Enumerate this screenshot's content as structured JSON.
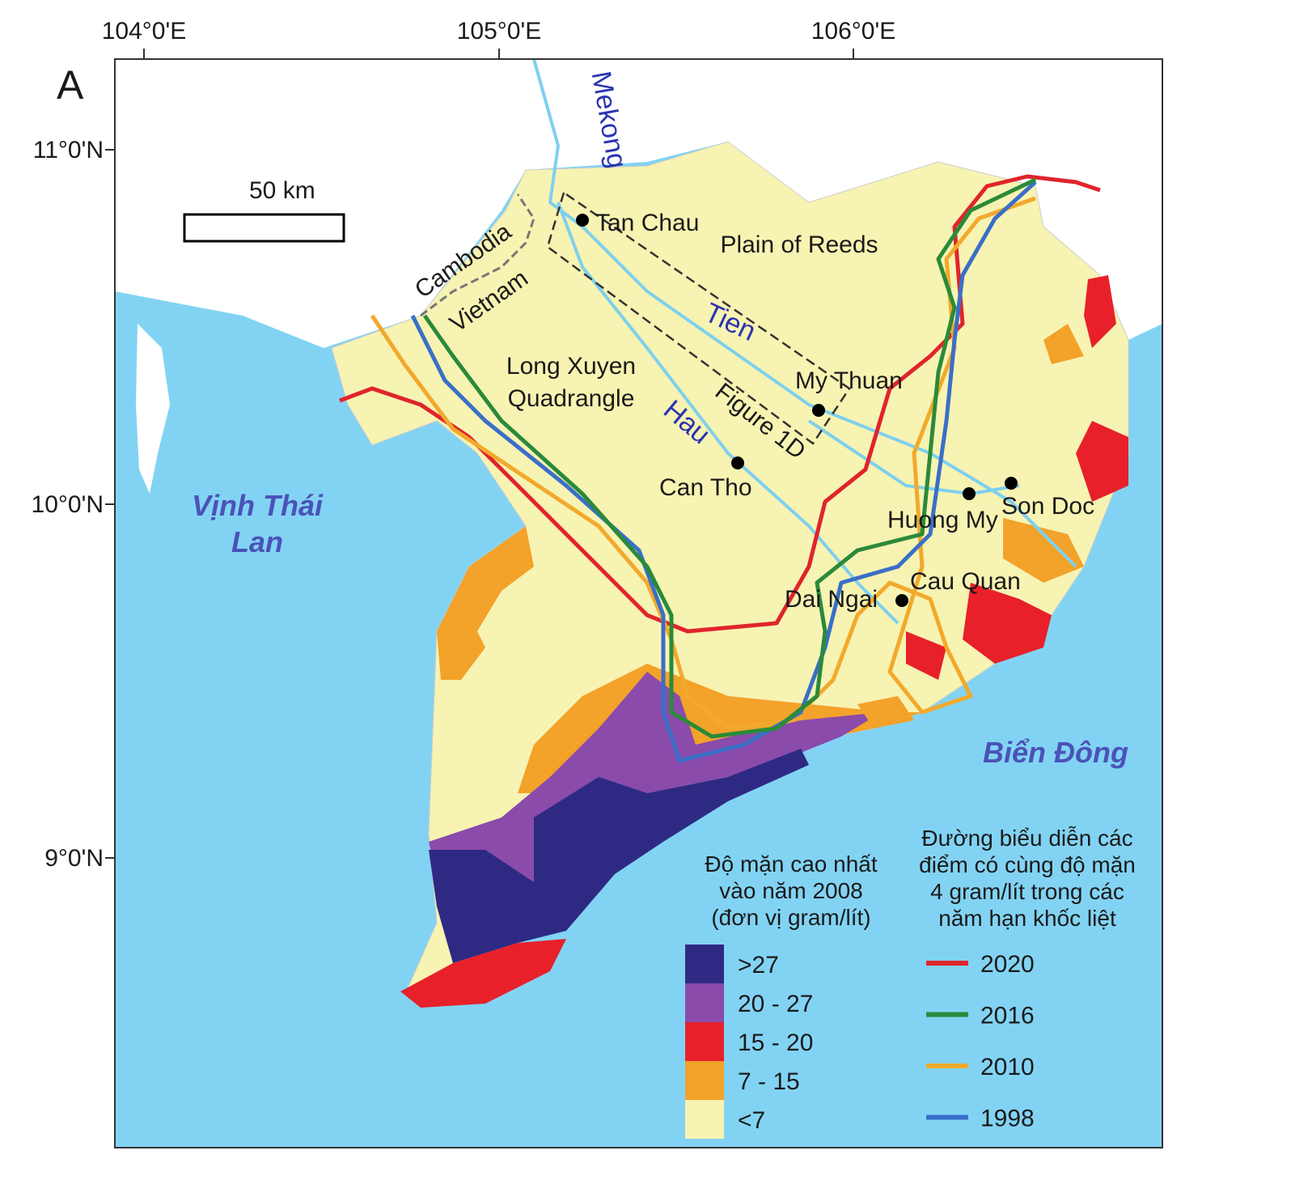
{
  "panel_label": "A",
  "longitude_labels": [
    "104°0'E",
    "105°0'E",
    "106°0'E"
  ],
  "latitude_labels": [
    "11°0'N",
    "10°0'N",
    "9°0'N"
  ],
  "scale_bar_label": "50 km",
  "map_labels": {
    "mekong": "Mekong",
    "cambodia": "Cambodia",
    "vietnam": "Vietnam",
    "tien": "Tien",
    "hau": "Hau",
    "figure_box": "Figure 1D",
    "plain_of_reeds": "Plain of Reeds",
    "long_xuyen": [
      "Long Xuyen",
      "Quadrangle"
    ]
  },
  "cities": [
    "Tan Chau",
    "My Thuan",
    "Can Tho",
    "Huong My",
    "Son Doc",
    "Cau Quan",
    "Dai Ngai"
  ],
  "seas": {
    "gulf": [
      "Vịnh Thái",
      "Lan"
    ],
    "east_sea": "Biển Đông"
  },
  "salinity_legend": {
    "title": [
      "Độ mặn cao nhất",
      "vào năm 2008",
      "(đơn vị gram/lít)"
    ],
    "items": [
      {
        "label": ">27",
        "color": "#2e2a84"
      },
      {
        "label": "20 - 27",
        "color": "#8a4bab"
      },
      {
        "label": "15 - 20",
        "color": "#e8202a"
      },
      {
        "label": "7 - 15",
        "color": "#f3a22a"
      },
      {
        "label": "<7",
        "color": "#f7f3b2"
      }
    ]
  },
  "isoline_legend": {
    "title": [
      "Đường biểu diễn các",
      "điểm có cùng độ mặn",
      "4 gram/lít trong các",
      "năm hạn khốc liệt"
    ],
    "items": [
      {
        "label": "2020",
        "color": "#e0242c"
      },
      {
        "label": "2016",
        "color": "#2a8a3a"
      },
      {
        "label": "2010",
        "color": "#f2a92c"
      },
      {
        "label": "1998",
        "color": "#3a6fc8"
      }
    ]
  }
}
